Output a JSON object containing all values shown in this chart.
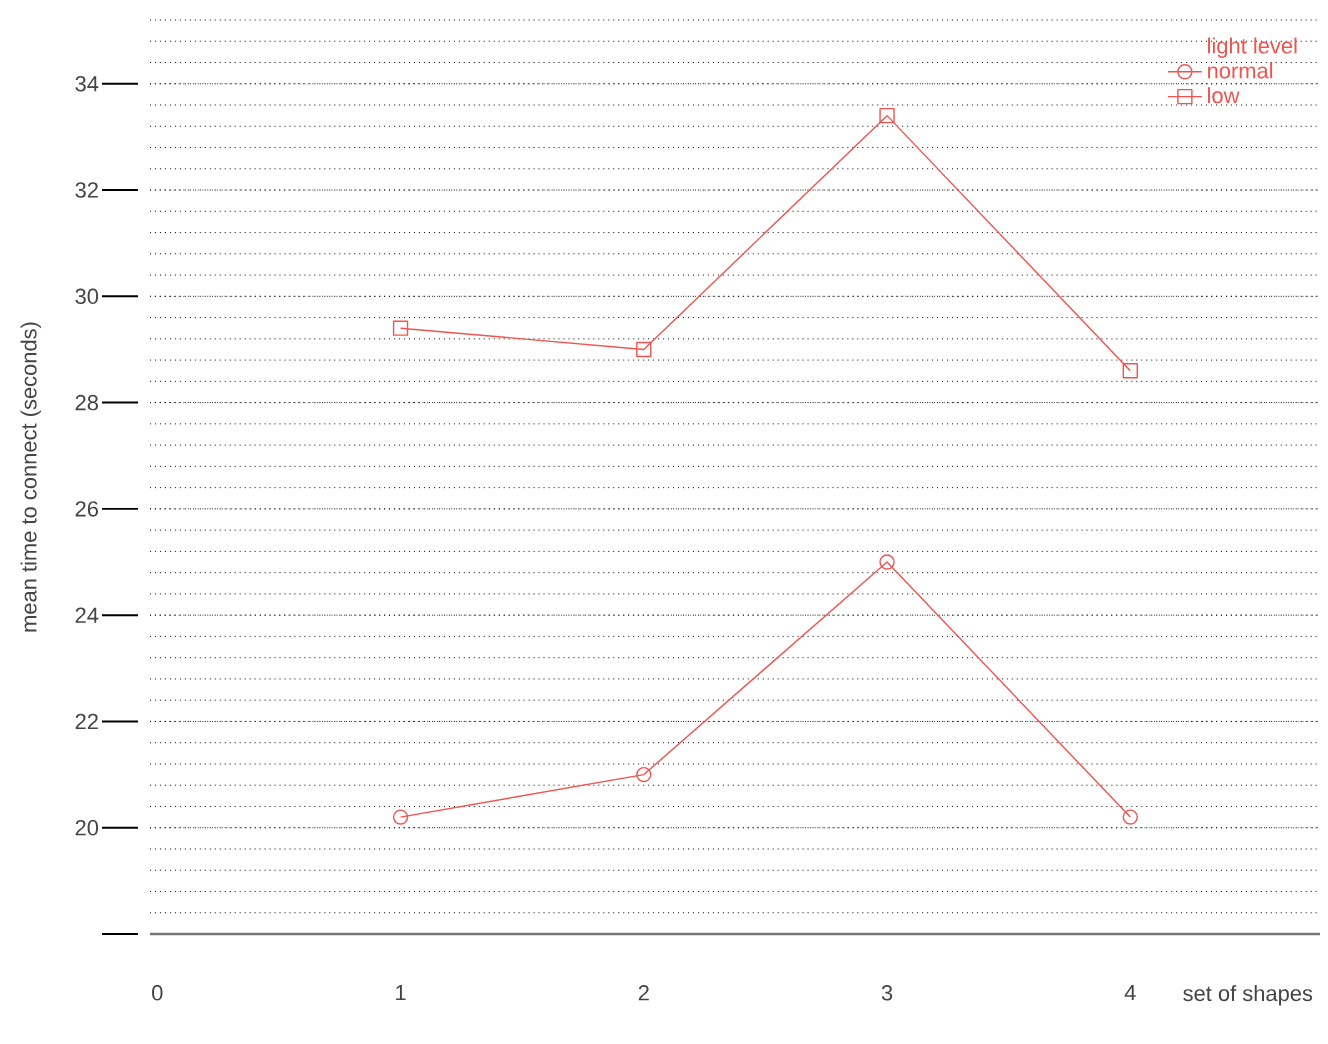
{
  "chart_data": {
    "type": "line",
    "xlabel": "set of shapes",
    "ylabel": "mean time to connect (seconds)",
    "legend_title": "light level",
    "x": [
      1,
      2,
      3,
      4
    ],
    "series": [
      {
        "name": "normal",
        "color": "#f0544f",
        "marker": "circle",
        "values": [
          20.2,
          21.0,
          25.0,
          20.2
        ]
      },
      {
        "name": "low",
        "color": "#f0544f",
        "marker": "square",
        "values": [
          29.4,
          29.0,
          33.4,
          28.6
        ]
      }
    ],
    "xlim": [
      -0.03,
      4.78
    ],
    "ylim": [
      18,
      35.2
    ],
    "xticks": [
      0,
      1,
      2,
      3,
      4
    ],
    "yticks": [
      {
        "value": 18,
        "label": null
      },
      20,
      22,
      24,
      26,
      28,
      30,
      32,
      34
    ],
    "grid": "y",
    "legend": "top right",
    "line_style": "solid"
  }
}
